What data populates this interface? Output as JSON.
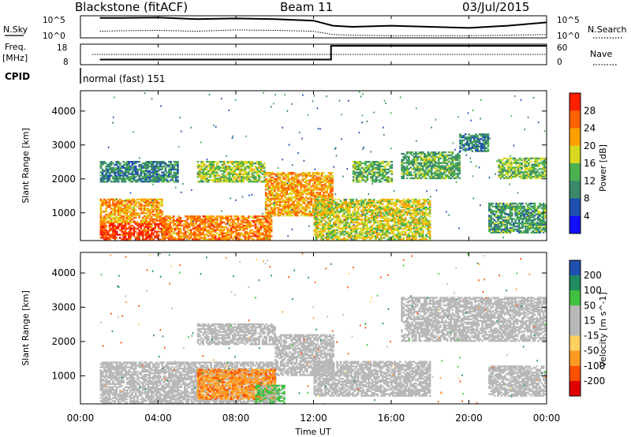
{
  "header": {
    "station": "Blackstone (fitACF)",
    "beam": "Beam 11",
    "date": "03/Jul/2015"
  },
  "noise_panel": {
    "left_label": "N.Sky",
    "left_tick_top": "10^5",
    "left_tick_bottom": "10^0",
    "right_label": "N.Search",
    "right_tick_top": "10^5",
    "right_tick_bottom": "10^0"
  },
  "freq_panel": {
    "left_label_line1": "Freq.",
    "left_label_line2": "[MHz]",
    "left_tick_top": "18",
    "left_tick_bottom": "8",
    "right_label": "Nave",
    "right_tick_top": "60",
    "right_tick_bottom": "0"
  },
  "cpid": {
    "label": "CPID",
    "text": "normal (fast) 151"
  },
  "x_axis": {
    "title": "Time UT",
    "ticks": [
      "00:00",
      "04:00",
      "08:00",
      "12:00",
      "16:00",
      "20:00",
      "00:00"
    ]
  },
  "colors": {
    "power_scale": [
      "#1010ff",
      "#2050b0",
      "#3a8a6a",
      "#4caf50",
      "#d8d820",
      "#ffa000",
      "#ff6000",
      "#ff2000",
      "#e00000"
    ],
    "velocity_scale": [
      "#e00000",
      "#ff5000",
      "#ff9a20",
      "#ffd060",
      "#b8b8b8",
      "#b8b8b8",
      "#40c040",
      "#208a60",
      "#2050b0",
      "#2020c0"
    ],
    "ground_scatter": "#b8b8b8"
  },
  "chart_data": [
    {
      "type": "line",
      "title": "N.Sky / N.Search",
      "x_unit": "hours UT",
      "xlim": [
        0,
        24
      ],
      "series": [
        {
          "name": "N.Sky",
          "x": [
            1,
            2,
            4,
            6,
            8,
            10,
            12,
            13,
            14,
            16,
            18,
            20,
            22,
            24
          ],
          "y_rel": [
            0.9,
            0.9,
            0.92,
            0.85,
            0.88,
            0.85,
            0.78,
            0.55,
            0.5,
            0.55,
            0.5,
            0.45,
            0.55,
            0.7
          ]
        },
        {
          "name": "N.Search",
          "x": [
            1,
            2,
            4,
            6,
            8,
            10,
            12,
            13,
            14,
            16,
            18,
            20,
            22,
            24
          ],
          "y_rel": [
            0.3,
            0.32,
            0.34,
            0.3,
            0.36,
            0.34,
            0.3,
            0.15,
            0.12,
            0.1,
            0.1,
            0.1,
            0.12,
            0.15
          ]
        }
      ]
    },
    {
      "type": "line",
      "title": "Freq. [MHz] / Nave",
      "x_unit": "hours UT",
      "xlim": [
        0,
        24
      ],
      "series": [
        {
          "name": "Freq.",
          "x": [
            1,
            12.9,
            12.9,
            24
          ],
          "y": [
            10.5,
            10.5,
            17.2,
            17.2
          ]
        },
        {
          "name": "Nave",
          "x": [
            0.6,
            24
          ],
          "y": [
            30,
            30
          ]
        }
      ]
    },
    {
      "type": "heatmap",
      "title": "Power [dB]",
      "xlabel": "Time UT",
      "ylabel": "Slant Range [km]",
      "xlim": [
        0,
        24
      ],
      "ylim": [
        180,
        4600
      ],
      "y_ticks": [
        1000,
        2000,
        3000,
        4000
      ],
      "colorbar_label": "Power [dB]",
      "colorbar_ticks": [
        4,
        8,
        12,
        16,
        20,
        24,
        28
      ],
      "echo_regions": [
        {
          "t0": 1,
          "t1": 4.6,
          "r0": 200,
          "r1": 700,
          "power_db": 28
        },
        {
          "t0": 1,
          "t1": 4.2,
          "r0": 700,
          "r1": 1400,
          "power_db": 22
        },
        {
          "t0": 4.2,
          "t1": 9.8,
          "r0": 200,
          "r1": 900,
          "power_db": 24
        },
        {
          "t0": 1,
          "t1": 5,
          "r0": 1900,
          "r1": 2500,
          "power_db": 10
        },
        {
          "t0": 6,
          "t1": 9.5,
          "r0": 1900,
          "r1": 2500,
          "power_db": 16
        },
        {
          "t0": 9.5,
          "t1": 13,
          "r0": 900,
          "r1": 2200,
          "power_db": 22
        },
        {
          "t0": 12,
          "t1": 18,
          "r0": 200,
          "r1": 1400,
          "power_db": 18
        },
        {
          "t0": 14,
          "t1": 16,
          "r0": 1900,
          "r1": 2500,
          "power_db": 14
        },
        {
          "t0": 16.5,
          "t1": 19.5,
          "r0": 2000,
          "r1": 2800,
          "power_db": 13
        },
        {
          "t0": 19.5,
          "t1": 21,
          "r0": 2800,
          "r1": 3300,
          "power_db": 10
        },
        {
          "t0": 21.5,
          "t1": 24,
          "r0": 2000,
          "r1": 2600,
          "power_db": 15
        },
        {
          "t0": 21,
          "t1": 24,
          "r0": 400,
          "r1": 1300,
          "power_db": 12
        }
      ]
    },
    {
      "type": "heatmap",
      "title": "Velocity [m s^-1]",
      "xlabel": "Time UT",
      "ylabel": "Slant Range [km]",
      "xlim": [
        0,
        24
      ],
      "ylim": [
        180,
        4600
      ],
      "y_ticks": [
        1000,
        2000,
        3000,
        4000
      ],
      "colorbar_label": "Velocity [m s^-1]",
      "colorbar_ticks": [
        -200,
        -100,
        -50,
        -15,
        15,
        50,
        100,
        200
      ],
      "echo_regions": [
        {
          "t0": 1,
          "t1": 10,
          "r0": 200,
          "r1": 1400,
          "velocity": 0
        },
        {
          "t0": 6,
          "t1": 10,
          "r0": 300,
          "r1": 1200,
          "velocity": -80
        },
        {
          "t0": 9,
          "t1": 10.5,
          "r0": 200,
          "r1": 700,
          "velocity": 60
        },
        {
          "t0": 10,
          "t1": 13,
          "r0": 1000,
          "r1": 2200,
          "velocity": 0
        },
        {
          "t0": 12,
          "t1": 18,
          "r0": 400,
          "r1": 1400,
          "velocity": 0
        },
        {
          "t0": 6,
          "t1": 10,
          "r0": 1900,
          "r1": 2500,
          "velocity": 0
        },
        {
          "t0": 16.5,
          "t1": 24,
          "r0": 2000,
          "r1": 3300,
          "velocity": 0
        },
        {
          "t0": 21,
          "t1": 24,
          "r0": 400,
          "r1": 1300,
          "velocity": 0
        }
      ]
    }
  ]
}
